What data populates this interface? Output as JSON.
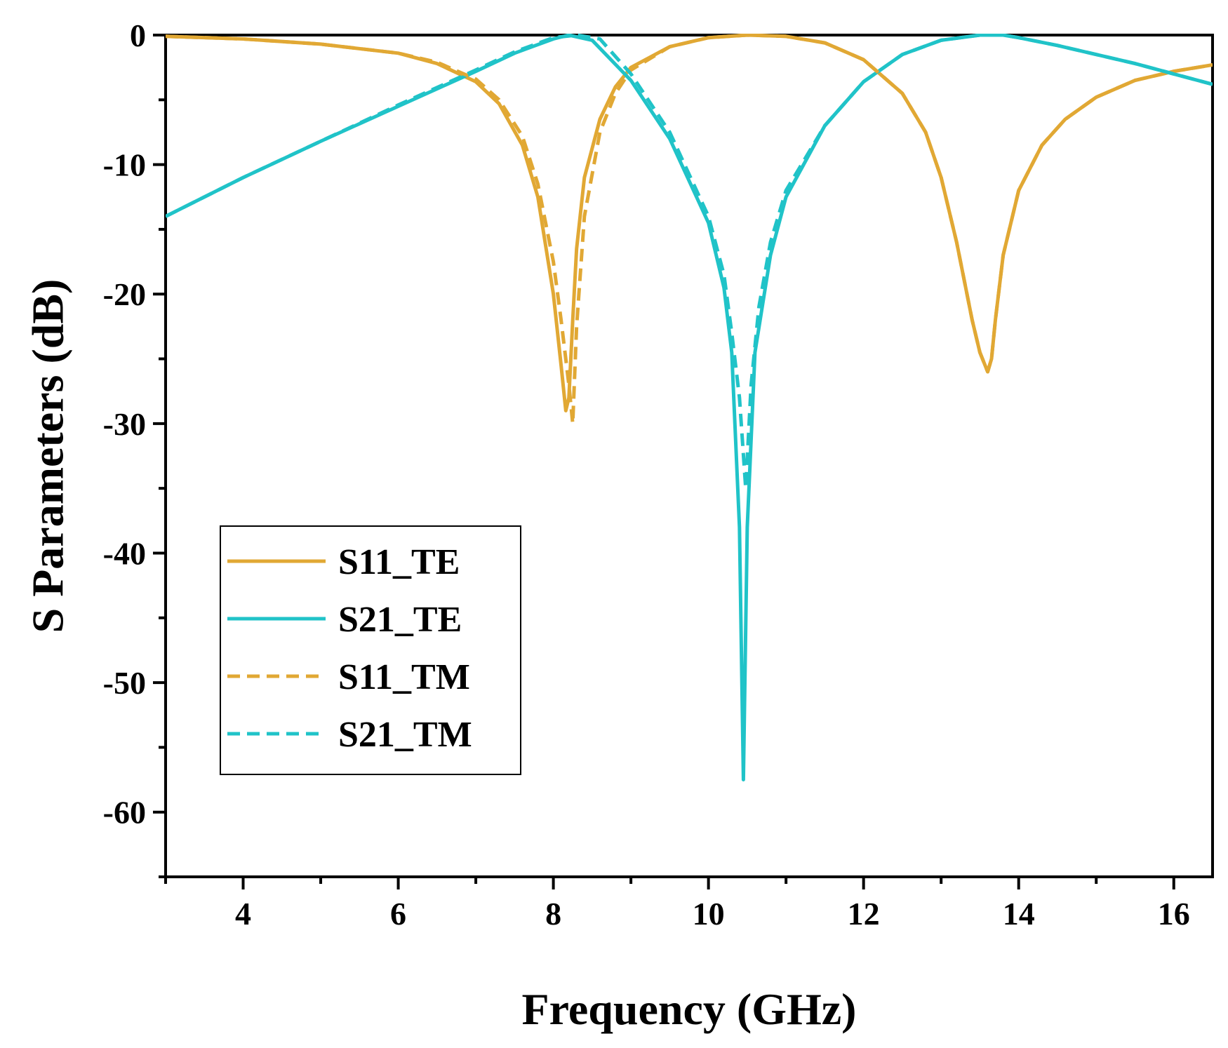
{
  "chart_data": {
    "type": "line",
    "title": "",
    "xlabel": "Frequency (GHz)",
    "ylabel": "S Parameters (dB)",
    "xlim": [
      3,
      16.5
    ],
    "ylim": [
      -65,
      0
    ],
    "x_ticks": [
      4,
      6,
      8,
      10,
      12,
      14,
      16
    ],
    "x_tick_labels": [
      "4",
      "6",
      "8",
      "10",
      "12",
      "14",
      "16"
    ],
    "y_ticks": [
      0,
      -10,
      -20,
      -30,
      -40,
      -50,
      -60
    ],
    "y_tick_labels": [
      "0",
      "-10",
      "-20",
      "-30",
      "-40",
      "-50",
      "-60"
    ],
    "grid": false,
    "legend_position": "lower-left",
    "series": [
      {
        "name": "S11_TE",
        "color": "#E1A834",
        "dash": "solid",
        "x": [
          3,
          4,
          5,
          6,
          6.5,
          7,
          7.3,
          7.6,
          7.8,
          8.0,
          8.1,
          8.16,
          8.2,
          8.25,
          8.3,
          8.4,
          8.6,
          8.8,
          9.0,
          9.5,
          10.0,
          10.5,
          11.0,
          11.5,
          12.0,
          12.5,
          12.8,
          13.0,
          13.2,
          13.4,
          13.5,
          13.6,
          13.65,
          13.7,
          13.8,
          14.0,
          14.3,
          14.6,
          15.0,
          15.5,
          16.0,
          16.5
        ],
        "y": [
          -0.1,
          -0.3,
          -0.7,
          -1.4,
          -2.2,
          -3.6,
          -5.3,
          -8.5,
          -12.5,
          -20.0,
          -25.5,
          -29.0,
          -28.0,
          -22.0,
          -16.5,
          -11.0,
          -6.5,
          -4.0,
          -2.5,
          -0.9,
          -0.2,
          0,
          -0.1,
          -0.6,
          -1.9,
          -4.5,
          -7.5,
          -11.0,
          -16.0,
          -22.0,
          -24.5,
          -26.0,
          -25.0,
          -22.0,
          -17.0,
          -12.0,
          -8.5,
          -6.5,
          -4.8,
          -3.5,
          -2.8,
          -2.3
        ]
      },
      {
        "name": "S21_TE",
        "color": "#20C3C8",
        "dash": "solid",
        "x": [
          3,
          4,
          5,
          6,
          7,
          7.5,
          8.0,
          8.2,
          8.5,
          9.0,
          9.5,
          10.0,
          10.2,
          10.3,
          10.4,
          10.45,
          10.5,
          10.6,
          10.8,
          11.0,
          11.5,
          12.0,
          12.5,
          13.0,
          13.5,
          13.8,
          14.0,
          14.5,
          15.0,
          15.5,
          16.0,
          16.5
        ],
        "y": [
          -14.0,
          -11.0,
          -8.2,
          -5.5,
          -2.8,
          -1.4,
          -0.3,
          0,
          -0.4,
          -3.5,
          -8.0,
          -14.5,
          -19.5,
          -24.5,
          -38.0,
          -57.5,
          -38.0,
          -24.5,
          -17.0,
          -12.5,
          -7.0,
          -3.6,
          -1.5,
          -0.4,
          0,
          0,
          -0.2,
          -0.8,
          -1.5,
          -2.2,
          -3.0,
          -3.8
        ]
      },
      {
        "name": "S11_TM",
        "color": "#E1A834",
        "dash": "dashed",
        "x": [
          3,
          4,
          5,
          6,
          6.5,
          7,
          7.3,
          7.6,
          7.8,
          8.0,
          8.1,
          8.2,
          8.25,
          8.3,
          8.4,
          8.6,
          8.8,
          9.0,
          9.5,
          10.0,
          10.5,
          11.0,
          11.5,
          12.0,
          12.5,
          12.8,
          13.0,
          13.2,
          13.4,
          13.5,
          13.6,
          13.65,
          13.7,
          13.8,
          14.0,
          14.3,
          14.6,
          15.0,
          15.5,
          16.0,
          16.5
        ],
        "y": [
          -0.1,
          -0.3,
          -0.7,
          -1.4,
          -2.1,
          -3.4,
          -5.0,
          -7.8,
          -11.5,
          -17.5,
          -22.0,
          -27.0,
          -30.0,
          -22.5,
          -14.0,
          -7.5,
          -4.5,
          -2.7,
          -0.9,
          -0.2,
          0,
          -0.1,
          -0.6,
          -1.9,
          -4.5,
          -7.5,
          -11.0,
          -16.0,
          -22.0,
          -24.5,
          -26.0,
          -25.0,
          -22.0,
          -17.0,
          -12.0,
          -8.5,
          -6.5,
          -4.8,
          -3.5,
          -2.8,
          -2.3
        ]
      },
      {
        "name": "S21_TM",
        "color": "#20C3C8",
        "dash": "dashed",
        "x": [
          3,
          4,
          5,
          6,
          7,
          7.5,
          8.0,
          8.3,
          8.6,
          9.0,
          9.5,
          10.0,
          10.2,
          10.3,
          10.4,
          10.48,
          10.55,
          10.65,
          10.8,
          11.0,
          11.5,
          12.0,
          12.5,
          13.0,
          13.5,
          13.8,
          14.0,
          14.5,
          15.0,
          15.5,
          16.0,
          16.5
        ],
        "y": [
          -14.0,
          -11.0,
          -8.2,
          -5.4,
          -2.7,
          -1.3,
          -0.2,
          0,
          -0.3,
          -3.0,
          -7.5,
          -14.0,
          -18.5,
          -23.0,
          -28.0,
          -35.0,
          -27.0,
          -21.0,
          -16.0,
          -12.0,
          -7.0,
          -3.6,
          -1.5,
          -0.4,
          0,
          0,
          -0.2,
          -0.8,
          -1.5,
          -2.2,
          -3.0,
          -3.8
        ]
      }
    ]
  }
}
